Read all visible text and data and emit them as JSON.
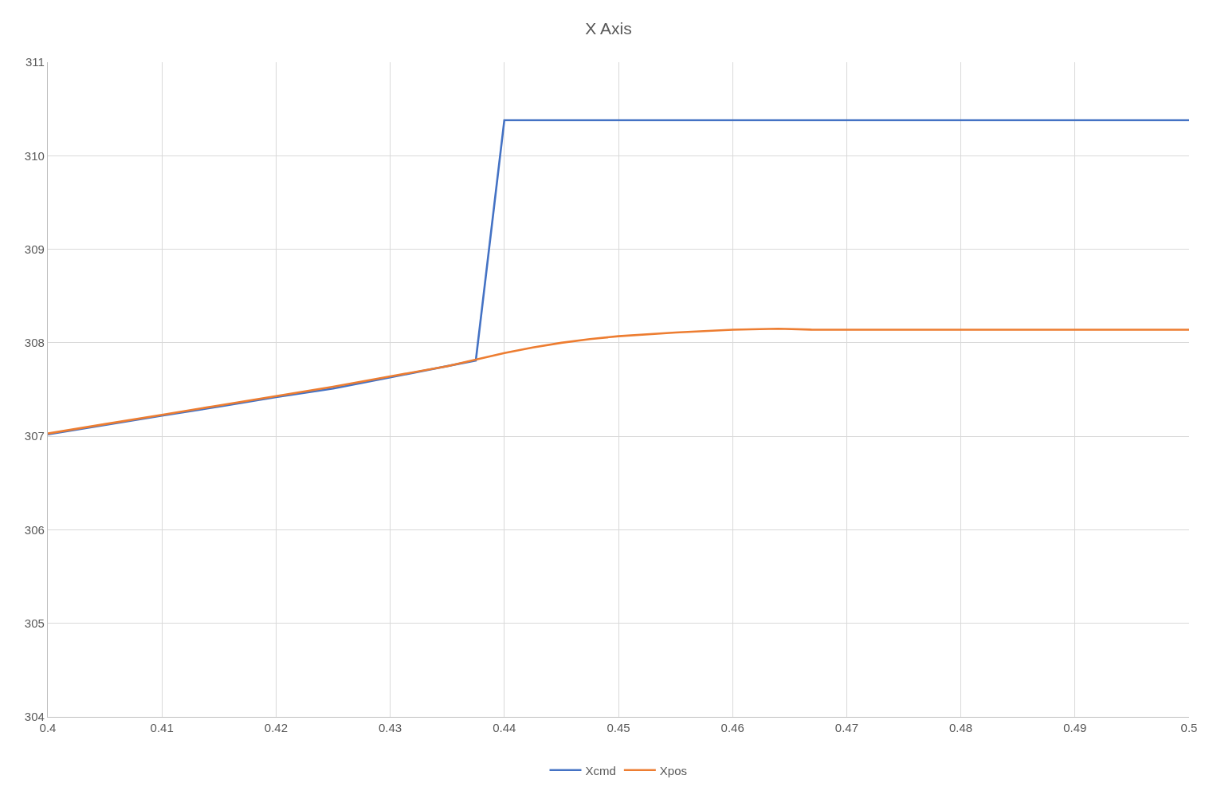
{
  "chart_data": {
    "type": "line",
    "title": "X Axis",
    "series": [
      {
        "name": "Xcmd",
        "color": "#4472c4",
        "x": [
          0.4,
          0.41,
          0.4156,
          0.42,
          0.425,
          0.43,
          0.4375,
          0.44,
          0.5
        ],
        "values": [
          307.02,
          307.22,
          307.33,
          307.42,
          307.51,
          307.63,
          307.81,
          310.38,
          310.38
        ]
      },
      {
        "name": "Xpos",
        "color": "#ed7d31",
        "x": [
          0.4,
          0.405,
          0.41,
          0.415,
          0.42,
          0.425,
          0.43,
          0.435,
          0.4375,
          0.44,
          0.4425,
          0.445,
          0.4475,
          0.45,
          0.455,
          0.46,
          0.464,
          0.467,
          0.5
        ],
        "values": [
          307.03,
          307.13,
          307.23,
          307.33,
          307.43,
          307.53,
          307.64,
          307.75,
          307.82,
          307.89,
          307.95,
          308.0,
          308.04,
          308.07,
          308.11,
          308.14,
          308.15,
          308.14,
          308.14
        ]
      }
    ],
    "xlim": [
      0.4,
      0.5
    ],
    "xticks": [
      0.4,
      0.41,
      0.42,
      0.43,
      0.44,
      0.45,
      0.46,
      0.47,
      0.48,
      0.49,
      0.5
    ],
    "ylim": [
      304,
      311
    ],
    "yticks": [
      304,
      305,
      306,
      307,
      308,
      309,
      310,
      311
    ],
    "grid": true,
    "legend": "bottom",
    "marker": "none",
    "line_style": "solid"
  }
}
